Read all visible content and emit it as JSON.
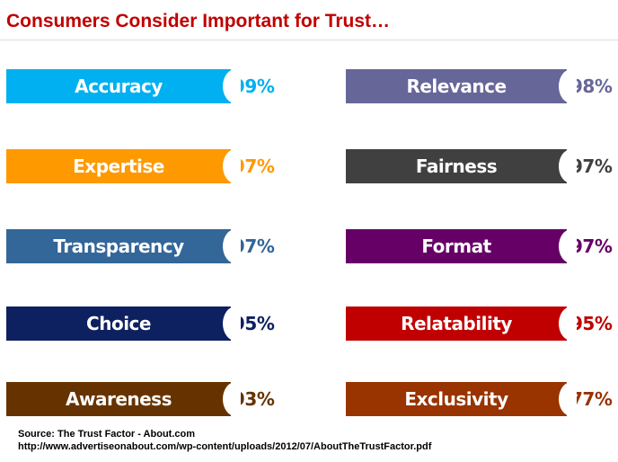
{
  "chart_data": {
    "type": "bar",
    "title": "Consumers Consider Important for Trust…",
    "categories": [
      "Accuracy",
      "Expertise",
      "Transparency",
      "Choice",
      "Awareness",
      "Relevance",
      "Fairness",
      "Format",
      "Relatability",
      "Exclusivity"
    ],
    "values": [
      99,
      97,
      97,
      95,
      93,
      98,
      97,
      97,
      95,
      77
    ],
    "value_labels": [
      "99%",
      "97%",
      "97%",
      "95%",
      "93%",
      "98%",
      "97%",
      "97%",
      "95%",
      "77%"
    ],
    "colors": [
      "#00b0f0",
      "#ff9900",
      "#336699",
      "#0d2060",
      "#663300",
      "#666699",
      "#404040",
      "#660066",
      "#c00000",
      "#993300"
    ],
    "grid": false,
    "legend": "none"
  },
  "source": {
    "line1": "Source: The Trust Factor - About.com",
    "line2": "http://www.advertiseonabout.com/wp-content/uploads/2012/07/AboutTheTrustFactor.pdf"
  }
}
